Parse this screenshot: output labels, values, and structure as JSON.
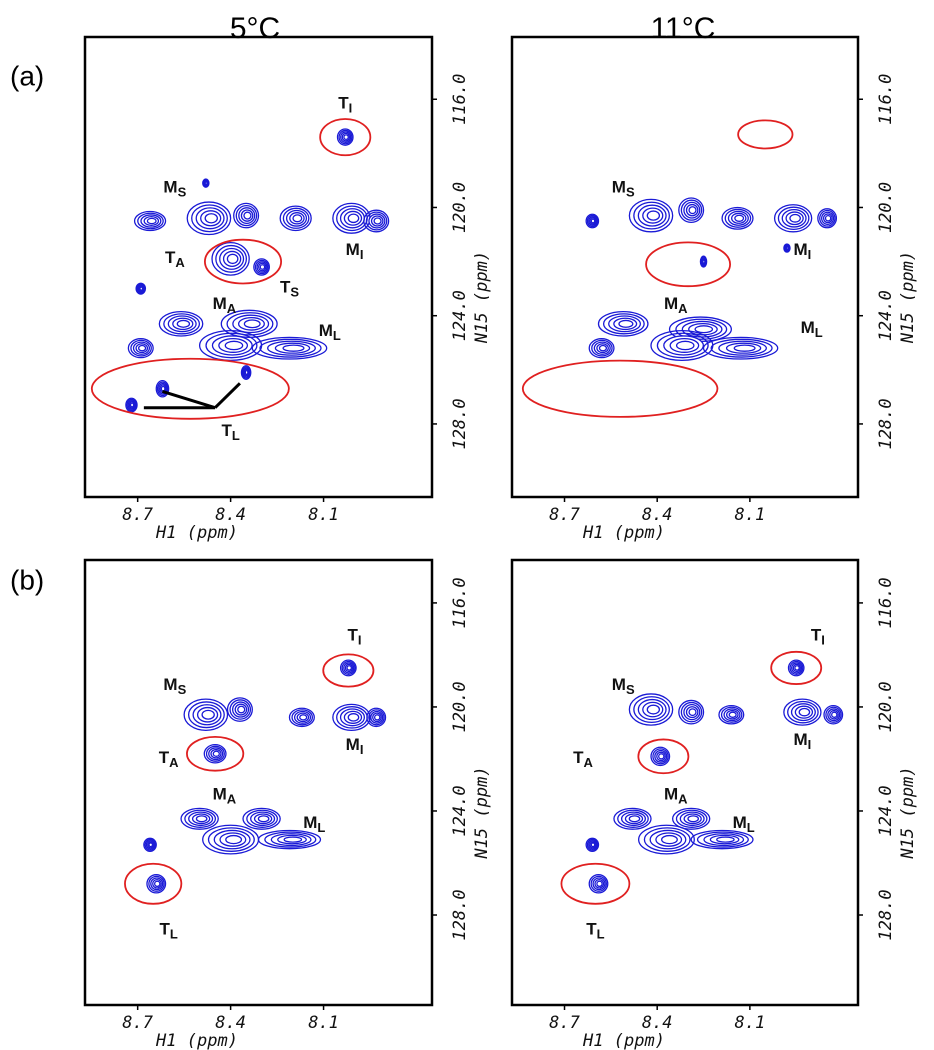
{
  "column_titles": [
    "5°C",
    "11°C"
  ],
  "row_labels": [
    "(a)",
    "(b)"
  ],
  "chart_data": [
    {
      "type": "contour",
      "x_label": "H1 (ppm)",
      "y_label": "N15 (ppm)",
      "xlim": [
        8.87,
        7.75
      ],
      "ylim": [
        113.7,
        130.7
      ],
      "xticks": [
        8.7,
        8.4,
        8.1
      ],
      "yticks": [
        {
          "value": 116,
          "label": "116.0"
        },
        {
          "value": 120,
          "label": "120.0"
        },
        {
          "value": 124,
          "label": "124.0"
        },
        {
          "value": 128,
          "label": "128.0"
        }
      ],
      "contour_color": "#1a1ad6",
      "circle_color": "#e02020",
      "peaks": [
        [
          8.03,
          117.4,
          0.025,
          0.3
        ],
        [
          8.66,
          120.5,
          0.05,
          0.35
        ],
        [
          8.47,
          120.4,
          0.07,
          0.6
        ],
        [
          8.35,
          120.3,
          0.04,
          0.45
        ],
        [
          8.19,
          120.4,
          0.05,
          0.45
        ],
        [
          8.01,
          120.4,
          0.06,
          0.55
        ],
        [
          7.93,
          120.5,
          0.04,
          0.4
        ],
        [
          8.4,
          121.9,
          0.06,
          0.6
        ],
        [
          8.3,
          122.2,
          0.025,
          0.3
        ],
        [
          8.56,
          124.3,
          0.07,
          0.45
        ],
        [
          8.34,
          124.3,
          0.09,
          0.5
        ],
        [
          8.69,
          125.2,
          0.04,
          0.35
        ],
        [
          8.4,
          125.1,
          0.1,
          0.55
        ],
        [
          8.21,
          125.2,
          0.12,
          0.4
        ],
        [
          8.72,
          127.3,
          0.018,
          0.25
        ],
        [
          8.62,
          126.7,
          0.02,
          0.3
        ],
        [
          8.35,
          126.1,
          0.015,
          0.25
        ],
        [
          8.69,
          123.0,
          0.015,
          0.2
        ],
        [
          8.48,
          119.1,
          0.01,
          0.15
        ]
      ],
      "circles": [
        [
          8.03,
          117.4,
          0.081,
          0.67
        ],
        [
          8.36,
          122.0,
          0.123,
          0.81
        ],
        [
          8.53,
          126.7,
          0.318,
          1.11
        ]
      ],
      "pointers": [
        [
          8.45,
          127.4,
          8.62,
          126.8
        ],
        [
          8.45,
          127.4,
          8.37,
          126.5
        ],
        [
          8.45,
          127.4,
          8.68,
          127.4
        ]
      ],
      "annotations": [
        {
          "text": "T",
          "sub": "I",
          "x": 8.03,
          "y": 116.2
        },
        {
          "text": "M",
          "sub": "S",
          "x": 8.58,
          "y": 119.3
        },
        {
          "text": "M",
          "sub": "I",
          "x": 8.0,
          "y": 121.6
        },
        {
          "text": "T",
          "sub": "A",
          "x": 8.58,
          "y": 121.9
        },
        {
          "text": "T",
          "sub": "S",
          "x": 8.21,
          "y": 123.0
        },
        {
          "text": "M",
          "sub": "A",
          "x": 8.42,
          "y": 123.6
        },
        {
          "text": "M",
          "sub": "L",
          "x": 8.08,
          "y": 124.6
        },
        {
          "text": "T",
          "sub": "L",
          "x": 8.4,
          "y": 128.3
        }
      ]
    },
    {
      "type": "contour",
      "x_label": "H1 (ppm)",
      "y_label": "N15 (ppm)",
      "xlim": [
        8.87,
        7.75
      ],
      "ylim": [
        113.7,
        130.7
      ],
      "xticks": [
        8.7,
        8.4,
        8.1
      ],
      "yticks": [
        {
          "value": 116,
          "label": "116.0"
        },
        {
          "value": 120,
          "label": "120.0"
        },
        {
          "value": 124,
          "label": "124.0"
        },
        {
          "value": 128,
          "label": "128.0"
        }
      ],
      "contour_color": "#1a1ad6",
      "circle_color": "#e02020",
      "peaks": [
        [
          8.61,
          120.5,
          0.02,
          0.25
        ],
        [
          8.42,
          120.3,
          0.07,
          0.6
        ],
        [
          8.29,
          120.1,
          0.04,
          0.45
        ],
        [
          8.14,
          120.4,
          0.05,
          0.4
        ],
        [
          7.96,
          120.4,
          0.06,
          0.5
        ],
        [
          7.85,
          120.4,
          0.03,
          0.35
        ],
        [
          8.25,
          122.0,
          0.01,
          0.2
        ],
        [
          7.98,
          121.5,
          0.01,
          0.15
        ],
        [
          8.51,
          124.3,
          0.08,
          0.45
        ],
        [
          8.26,
          124.5,
          0.1,
          0.45
        ],
        [
          8.58,
          125.2,
          0.04,
          0.35
        ],
        [
          8.32,
          125.1,
          0.1,
          0.55
        ],
        [
          8.13,
          125.2,
          0.12,
          0.4
        ]
      ],
      "circles": [
        [
          8.05,
          117.3,
          0.088,
          0.52
        ],
        [
          8.3,
          122.1,
          0.136,
          0.81
        ],
        [
          8.52,
          126.7,
          0.315,
          1.04
        ]
      ],
      "pointers": [],
      "annotations": [
        {
          "text": "M",
          "sub": "S",
          "x": 8.51,
          "y": 119.3
        },
        {
          "text": "M",
          "sub": "I",
          "x": 7.93,
          "y": 121.6
        },
        {
          "text": "M",
          "sub": "A",
          "x": 8.34,
          "y": 123.6
        },
        {
          "text": "M",
          "sub": "L",
          "x": 7.9,
          "y": 124.5
        }
      ]
    },
    {
      "type": "contour",
      "x_label": "H1 (ppm)",
      "y_label": "N15 (ppm)",
      "xlim": [
        8.87,
        7.75
      ],
      "ylim": [
        114.35,
        131.46
      ],
      "xticks": [
        8.7,
        8.4,
        8.1
      ],
      "yticks": [
        {
          "value": 116,
          "label": "116.0"
        },
        {
          "value": 120,
          "label": "120.0"
        },
        {
          "value": 124,
          "label": "124.0"
        },
        {
          "value": 128,
          "label": "128.0"
        }
      ],
      "contour_color": "#1a1ad6",
      "circle_color": "#e02020",
      "peaks": [
        [
          8.02,
          118.5,
          0.025,
          0.3
        ],
        [
          8.48,
          120.3,
          0.07,
          0.6
        ],
        [
          8.37,
          120.1,
          0.04,
          0.45
        ],
        [
          8.17,
          120.4,
          0.04,
          0.35
        ],
        [
          8.01,
          120.4,
          0.06,
          0.5
        ],
        [
          7.93,
          120.4,
          0.03,
          0.35
        ],
        [
          8.45,
          121.8,
          0.035,
          0.35
        ],
        [
          8.5,
          124.3,
          0.06,
          0.4
        ],
        [
          8.3,
          124.3,
          0.06,
          0.4
        ],
        [
          8.4,
          125.1,
          0.09,
          0.55
        ],
        [
          8.21,
          125.1,
          0.1,
          0.35
        ],
        [
          8.66,
          125.3,
          0.02,
          0.25
        ],
        [
          8.64,
          126.8,
          0.03,
          0.35
        ]
      ],
      "circles": [
        [
          8.02,
          118.6,
          0.081,
          0.62
        ],
        [
          8.45,
          121.8,
          0.091,
          0.65
        ],
        [
          8.65,
          126.8,
          0.091,
          0.77
        ]
      ],
      "pointers": [],
      "annotations": [
        {
          "text": "T",
          "sub": "I",
          "x": 8.0,
          "y": 117.3
        },
        {
          "text": "M",
          "sub": "S",
          "x": 8.58,
          "y": 119.2
        },
        {
          "text": "M",
          "sub": "I",
          "x": 8.0,
          "y": 121.5
        },
        {
          "text": "T",
          "sub": "A",
          "x": 8.6,
          "y": 122.0
        },
        {
          "text": "M",
          "sub": "A",
          "x": 8.42,
          "y": 123.4
        },
        {
          "text": "M",
          "sub": "L",
          "x": 8.13,
          "y": 124.5
        },
        {
          "text": "T",
          "sub": "L",
          "x": 8.6,
          "y": 128.6
        }
      ]
    },
    {
      "type": "contour",
      "x_label": "H1 (ppm)",
      "y_label": "N15 (ppm)",
      "xlim": [
        8.87,
        7.75
      ],
      "ylim": [
        114.35,
        131.46
      ],
      "xticks": [
        8.7,
        8.4,
        8.1
      ],
      "yticks": [
        {
          "value": 116,
          "label": "116.0"
        },
        {
          "value": 120,
          "label": "120.0"
        },
        {
          "value": 124,
          "label": "124.0"
        },
        {
          "value": 128,
          "label": "128.0"
        }
      ],
      "contour_color": "#1a1ad6",
      "circle_color": "#e02020",
      "peaks": [
        [
          7.95,
          118.5,
          0.025,
          0.3
        ],
        [
          8.42,
          120.1,
          0.07,
          0.6
        ],
        [
          8.29,
          120.2,
          0.04,
          0.45
        ],
        [
          8.16,
          120.3,
          0.04,
          0.35
        ],
        [
          7.93,
          120.2,
          0.06,
          0.5
        ],
        [
          7.83,
          120.3,
          0.03,
          0.35
        ],
        [
          8.39,
          121.9,
          0.03,
          0.35
        ],
        [
          8.48,
          124.3,
          0.06,
          0.4
        ],
        [
          8.29,
          124.3,
          0.06,
          0.4
        ],
        [
          8.37,
          125.1,
          0.09,
          0.55
        ],
        [
          8.19,
          125.1,
          0.1,
          0.35
        ],
        [
          8.61,
          125.3,
          0.02,
          0.25
        ],
        [
          8.59,
          126.8,
          0.03,
          0.35
        ]
      ],
      "circles": [
        [
          7.95,
          118.5,
          0.081,
          0.62
        ],
        [
          8.38,
          121.9,
          0.081,
          0.65
        ],
        [
          8.6,
          126.8,
          0.11,
          0.77
        ]
      ],
      "pointers": [],
      "annotations": [
        {
          "text": "T",
          "sub": "I",
          "x": 7.88,
          "y": 117.3
        },
        {
          "text": "M",
          "sub": "S",
          "x": 8.51,
          "y": 119.2
        },
        {
          "text": "M",
          "sub": "I",
          "x": 7.93,
          "y": 121.3
        },
        {
          "text": "T",
          "sub": "A",
          "x": 8.64,
          "y": 122.0
        },
        {
          "text": "M",
          "sub": "A",
          "x": 8.34,
          "y": 123.4
        },
        {
          "text": "M",
          "sub": "L",
          "x": 8.12,
          "y": 124.5
        },
        {
          "text": "T",
          "sub": "L",
          "x": 8.6,
          "y": 128.6
        }
      ]
    }
  ]
}
